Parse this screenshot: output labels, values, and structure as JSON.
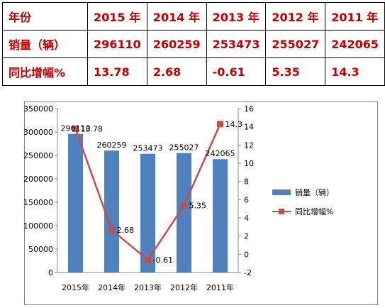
{
  "table": {
    "header": [
      "年份",
      "2015 年",
      "2014 年",
      "2013 年",
      "2012 年",
      "2011 年"
    ],
    "rows": [
      {
        "label": "销量（辆）",
        "values": [
          "296110",
          "260259",
          "253473",
          "255027",
          "242065"
        ]
      },
      {
        "label": "同比增幅%",
        "values": [
          "13.78",
          "2.68",
          "-0.61",
          "5.35",
          "14.3"
        ]
      }
    ],
    "text_color": "#c00000"
  },
  "chart_data": {
    "type": "bar",
    "categories": [
      "2015年",
      "2014年",
      "2013年",
      "2012年",
      "2011年"
    ],
    "series": [
      {
        "name": "销量（辆）",
        "type": "bar",
        "axis": "left",
        "values": [
          296110,
          260259,
          253473,
          255027,
          242065
        ],
        "color": "#4f81bd"
      },
      {
        "name": "同比增幅%",
        "type": "line",
        "axis": "right",
        "values": [
          13.78,
          2.68,
          -0.61,
          5.35,
          14.3
        ],
        "color": "#c0504d"
      }
    ],
    "y_left": {
      "min": 0,
      "max": 350000,
      "step": 50000,
      "ticks": [
        "0",
        "50000",
        "100000",
        "150000",
        "200000",
        "250000",
        "300000",
        "350000"
      ]
    },
    "y_right": {
      "min": -2,
      "max": 16,
      "step": 2,
      "ticks": [
        "-2",
        "0",
        "2",
        "4",
        "6",
        "8",
        "10",
        "12",
        "14",
        "16"
      ]
    },
    "data_labels": {
      "bars": [
        "296110",
        "260259",
        "253473",
        "255027",
        "242065"
      ],
      "line": [
        "13.78",
        "2.68",
        "-0.61",
        "5.35",
        "14.3"
      ]
    },
    "grid": false,
    "legend_position": "right"
  }
}
